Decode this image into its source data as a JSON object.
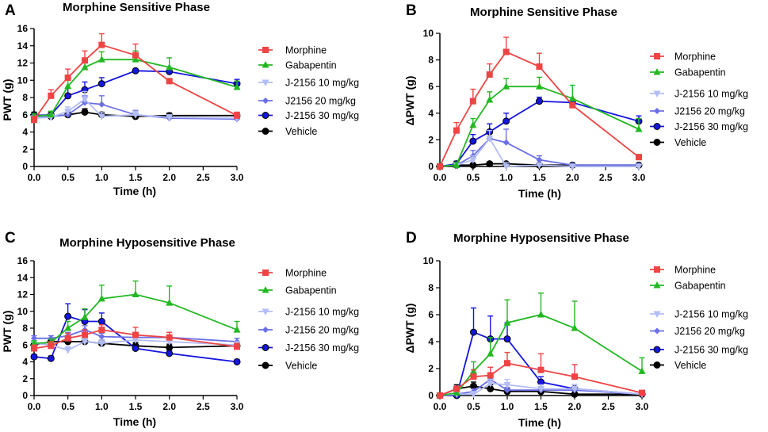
{
  "colors": {
    "Morphine": "#ef4444",
    "Gabapentin": "#22b822",
    "J-2156 10 mg/kg": "#b3bdf5",
    "J2156 20 mg/kg": "#6b6fe6",
    "J-2156 20 mg/kg": "#6b6fe6",
    "J-2156 30 mg/kg": "#1515e0",
    "Vehicle": "#000000"
  },
  "chart_data": [
    {
      "panel_letter": "A",
      "type": "line",
      "title": "Morphine Sensitive Phase",
      "xlabel": "Time (h)",
      "ylabel": "PWT (g)",
      "xlim": [
        0,
        3
      ],
      "ylim": [
        0,
        16
      ],
      "xticks": [
        "0.0",
        "0.5",
        "1.0",
        "1.5",
        "2.0",
        "2.5",
        "3.0"
      ],
      "yticks": [
        "0",
        "2",
        "4",
        "6",
        "8",
        "10",
        "12",
        "14",
        "16"
      ],
      "series": [
        {
          "name": "Morphine",
          "marker": "square",
          "x": [
            0,
            0.25,
            0.5,
            0.75,
            1.0,
            1.5,
            2.0,
            3.0
          ],
          "y": [
            5.4,
            8.2,
            10.3,
            12.3,
            14.1,
            12.9,
            9.9,
            5.9
          ],
          "err": [
            0.4,
            0.7,
            1.0,
            1.1,
            1.3,
            1.3,
            0.0,
            0.4
          ]
        },
        {
          "name": "Gabapentin",
          "marker": "triangle-up",
          "x": [
            0,
            0.25,
            0.5,
            0.75,
            1.0,
            1.5,
            2.0,
            3.0
          ],
          "y": [
            5.8,
            6.0,
            9.3,
            11.5,
            12.4,
            12.4,
            11.5,
            9.2
          ],
          "err": [
            0.3,
            0.4,
            1.0,
            1.0,
            0.9,
            1.0,
            1.1,
            0.7
          ]
        },
        {
          "name": "J-2156 10 mg/kg",
          "marker": "triangle-down",
          "x": [
            0,
            0.25,
            0.5,
            0.75,
            1.0,
            1.5,
            2.0,
            3.0
          ],
          "y": [
            5.6,
            5.7,
            6.4,
            7.8,
            5.8,
            6.0,
            5.7,
            5.6
          ],
          "err": [
            0.3,
            0.3,
            0.5,
            0.9,
            0.5,
            0.4,
            0.3,
            0.3
          ]
        },
        {
          "name": "J2156 20 mg/kg",
          "marker": "diamond",
          "x": [
            0,
            0.25,
            0.5,
            0.75,
            1.0,
            1.5,
            2.0,
            3.0
          ],
          "y": [
            5.8,
            5.8,
            6.0,
            7.4,
            7.2,
            6.0,
            5.6,
            5.5
          ],
          "err": [
            0.3,
            0.3,
            0.5,
            0.8,
            1.0,
            0.5,
            0.3,
            0.3
          ]
        },
        {
          "name": "J-2156 30 mg/kg",
          "marker": "circle",
          "x": [
            0,
            0.25,
            0.5,
            0.75,
            1.0,
            1.5,
            2.0,
            3.0
          ],
          "y": [
            5.9,
            6.0,
            8.2,
            8.9,
            9.6,
            11.1,
            11.0,
            9.6
          ],
          "err": [
            0.3,
            0.4,
            0.9,
            0.9,
            0.7,
            0.0,
            0.0,
            0.5
          ]
        },
        {
          "name": "Vehicle",
          "marker": "circle",
          "x": [
            0,
            0.25,
            0.5,
            0.75,
            1.0,
            1.5,
            2.0,
            3.0
          ],
          "y": [
            6.0,
            5.8,
            6.0,
            6.3,
            6.0,
            5.8,
            5.9,
            5.9
          ],
          "err": [
            0.3,
            0.3,
            0.3,
            0.4,
            0.3,
            0.3,
            0.3,
            0.3
          ]
        }
      ]
    },
    {
      "panel_letter": "B",
      "type": "line",
      "title": "Morphine Sensitive Phase",
      "xlabel": "Time (h)",
      "ylabel": "ΔPWT (g)",
      "xlim": [
        0,
        3
      ],
      "ylim": [
        0,
        10
      ],
      "xticks": [
        "0.0",
        "0.5",
        "1.0",
        "1.5",
        "2.0",
        "2.5",
        "3.0"
      ],
      "yticks": [
        "0",
        "2",
        "4",
        "6",
        "8",
        "10"
      ],
      "series": [
        {
          "name": "Morphine",
          "marker": "square",
          "x": [
            0,
            0.25,
            0.5,
            0.75,
            1.0,
            1.5,
            2.0,
            3.0
          ],
          "y": [
            0.0,
            2.7,
            4.9,
            6.9,
            8.6,
            7.5,
            4.6,
            0.7
          ],
          "err": [
            0.0,
            0.6,
            0.9,
            0.8,
            1.1,
            1.0,
            0.0,
            0.2
          ]
        },
        {
          "name": "Gabapentin",
          "marker": "triangle-up",
          "x": [
            0,
            0.25,
            0.5,
            0.75,
            1.0,
            1.5,
            2.0,
            3.0
          ],
          "y": [
            0.0,
            0.1,
            3.1,
            5.0,
            6.0,
            6.0,
            5.1,
            2.8
          ],
          "err": [
            0.0,
            0.2,
            0.5,
            0.6,
            0.6,
            0.7,
            1.0,
            0.8
          ]
        },
        {
          "name": "J-2156 10 mg/kg",
          "marker": "triangle-down",
          "x": [
            0,
            0.25,
            0.5,
            0.75,
            1.0,
            1.5,
            2.0,
            3.0
          ],
          "y": [
            0.0,
            0.1,
            0.5,
            2.1,
            0.0,
            0.1,
            0.0,
            0.0
          ],
          "err": [
            0.0,
            0.1,
            0.3,
            0.6,
            0.3,
            0.1,
            0.0,
            0.0
          ]
        },
        {
          "name": "J2156 20 mg/kg",
          "marker": "diamond",
          "x": [
            0,
            0.25,
            0.5,
            0.75,
            1.0,
            1.5,
            2.0,
            3.0
          ],
          "y": [
            0.0,
            0.1,
            0.8,
            2.1,
            1.8,
            0.5,
            0.1,
            0.1
          ],
          "err": [
            0.0,
            0.1,
            0.4,
            0.6,
            1.0,
            0.3,
            0.1,
            0.1
          ]
        },
        {
          "name": "J-2156 30 mg/kg",
          "marker": "circle",
          "x": [
            0,
            0.25,
            0.5,
            0.75,
            1.0,
            1.5,
            2.0,
            3.0
          ],
          "y": [
            0.0,
            0.2,
            1.9,
            2.6,
            3.4,
            4.9,
            4.8,
            3.4
          ],
          "err": [
            0.0,
            0.2,
            0.5,
            0.6,
            0.6,
            0.3,
            0.2,
            0.4
          ]
        },
        {
          "name": "Vehicle",
          "marker": "circle",
          "x": [
            0,
            0.25,
            0.5,
            0.75,
            1.0,
            1.5,
            2.0,
            3.0
          ],
          "y": [
            0.0,
            0.1,
            0.1,
            0.2,
            0.2,
            0.1,
            0.1,
            0.1
          ],
          "err": [
            0.0,
            0.1,
            0.1,
            0.1,
            0.1,
            0.1,
            0.0,
            0.0
          ]
        }
      ]
    },
    {
      "panel_letter": "C",
      "type": "line",
      "title": "Morphine Hyposensitive Phase",
      "xlabel": "Time (h)",
      "ylabel": "PWT (g)",
      "xlim": [
        0,
        3
      ],
      "ylim": [
        0,
        16
      ],
      "xticks": [
        "0.0",
        "0.5",
        "1.0",
        "1.5",
        "2.0",
        "2.5",
        "3.0"
      ],
      "yticks": [
        "0",
        "2",
        "4",
        "6",
        "8",
        "10",
        "12",
        "14",
        "16"
      ],
      "series": [
        {
          "name": "Morphine",
          "marker": "square",
          "x": [
            0,
            0.25,
            0.5,
            0.75,
            1.0,
            1.5,
            2.0,
            3.0
          ],
          "y": [
            5.6,
            5.9,
            6.8,
            7.2,
            7.8,
            7.2,
            6.9,
            5.8
          ],
          "err": [
            0.4,
            0.5,
            0.6,
            0.6,
            0.6,
            0.9,
            0.6,
            0.4
          ]
        },
        {
          "name": "Gabapentin",
          "marker": "triangle-up",
          "x": [
            0,
            0.25,
            0.5,
            0.75,
            1.0,
            1.5,
            2.0,
            3.0
          ],
          "y": [
            6.2,
            6.3,
            8.0,
            9.3,
            11.5,
            12.0,
            11.0,
            7.8
          ],
          "err": [
            0.3,
            0.4,
            0.8,
            1.0,
            1.6,
            1.6,
            2.0,
            1.0
          ]
        },
        {
          "name": "J-2156 10 mg/kg",
          "marker": "triangle-down",
          "x": [
            0,
            0.25,
            0.5,
            0.75,
            1.0,
            1.5,
            2.0,
            3.0
          ],
          "y": [
            6.2,
            6.0,
            5.4,
            6.4,
            6.2,
            6.6,
            6.4,
            6.0
          ],
          "err": [
            0.3,
            0.3,
            0.4,
            0.4,
            0.4,
            0.4,
            0.4,
            0.4
          ]
        },
        {
          "name": "J-2156 20 mg/kg",
          "marker": "diamond",
          "x": [
            0,
            0.25,
            0.5,
            0.75,
            1.0,
            1.5,
            2.0,
            3.0
          ],
          "y": [
            6.8,
            6.8,
            7.1,
            7.8,
            7.0,
            6.9,
            6.9,
            6.4
          ],
          "err": [
            0.3,
            0.3,
            0.4,
            0.5,
            0.4,
            0.5,
            0.6,
            0.4
          ]
        },
        {
          "name": "J-2156 30 mg/kg",
          "marker": "circle",
          "x": [
            0,
            0.25,
            0.5,
            0.75,
            1.0,
            1.5,
            2.0,
            3.0
          ],
          "y": [
            4.6,
            4.4,
            9.4,
            8.8,
            8.8,
            5.6,
            5.0,
            4.0
          ],
          "err": [
            0.3,
            0.3,
            1.5,
            1.4,
            1.0,
            0.3,
            0.3,
            0.3
          ]
        },
        {
          "name": "Vehicle",
          "marker": "circle",
          "x": [
            0,
            0.25,
            0.5,
            0.75,
            1.0,
            1.5,
            2.0,
            3.0
          ],
          "y": [
            6.0,
            6.4,
            6.4,
            6.4,
            6.2,
            5.9,
            5.7,
            5.9
          ],
          "err": [
            0.3,
            0.4,
            0.4,
            0.4,
            0.4,
            0.4,
            0.4,
            0.4
          ]
        }
      ]
    },
    {
      "panel_letter": "D",
      "type": "line",
      "title": "Morphine Hyposensitive Phase",
      "xlabel": "Time (h)",
      "ylabel": "ΔPWT (g)",
      "xlim": [
        0,
        3
      ],
      "ylim": [
        0,
        10
      ],
      "xticks": [
        "0.0",
        "0.5",
        "1.0",
        "1.5",
        "2.0",
        "2.5",
        "3.0"
      ],
      "yticks": [
        "0",
        "2",
        "4",
        "6",
        "8",
        "10"
      ],
      "series": [
        {
          "name": "Morphine",
          "marker": "square",
          "x": [
            0,
            0.25,
            0.5,
            0.75,
            1.0,
            1.5,
            2.0,
            3.0
          ],
          "y": [
            0.0,
            0.5,
            1.4,
            1.5,
            2.4,
            1.9,
            1.4,
            0.2
          ],
          "err": [
            0.0,
            0.2,
            0.5,
            0.6,
            0.8,
            1.2,
            0.9,
            0.1
          ]
        },
        {
          "name": "Gabapentin",
          "marker": "triangle-up",
          "x": [
            0,
            0.25,
            0.5,
            0.75,
            1.0,
            1.5,
            2.0,
            3.0
          ],
          "y": [
            0.0,
            0.2,
            1.8,
            3.1,
            5.4,
            6.0,
            5.0,
            1.8
          ],
          "err": [
            0.0,
            0.2,
            0.7,
            1.2,
            1.7,
            1.6,
            2.0,
            1.0
          ]
        },
        {
          "name": "J-2156 10 mg/kg",
          "marker": "triangle-down",
          "x": [
            0,
            0.25,
            0.5,
            0.75,
            1.0,
            1.5,
            2.0,
            3.0
          ],
          "y": [
            0.0,
            0.1,
            0.1,
            0.9,
            0.8,
            0.5,
            0.5,
            0.1
          ],
          "err": [
            0.0,
            0.1,
            0.2,
            0.3,
            0.4,
            0.3,
            0.3,
            0.1
          ]
        },
        {
          "name": "J2156 20 mg/kg",
          "marker": "diamond",
          "x": [
            0,
            0.25,
            0.5,
            0.75,
            1.0,
            1.5,
            2.0,
            3.0
          ],
          "y": [
            0.0,
            0.1,
            0.3,
            1.2,
            0.4,
            0.4,
            0.4,
            0.1
          ],
          "err": [
            0.0,
            0.1,
            0.2,
            0.4,
            0.2,
            0.2,
            0.2,
            0.1
          ]
        },
        {
          "name": "J-2156 30 mg/kg",
          "marker": "circle",
          "x": [
            0,
            0.25,
            0.5,
            0.75,
            1.0,
            1.5,
            2.0,
            3.0
          ],
          "y": [
            0.0,
            0.0,
            4.7,
            4.2,
            4.2,
            1.0,
            0.5,
            0.1
          ],
          "err": [
            0.0,
            0.1,
            1.8,
            1.7,
            1.2,
            0.4,
            0.3,
            0.1
          ]
        },
        {
          "name": "Vehicle",
          "marker": "circle",
          "x": [
            0,
            0.25,
            0.5,
            0.75,
            1.0,
            1.5,
            2.0,
            3.0
          ],
          "y": [
            0.0,
            0.5,
            0.7,
            0.5,
            0.3,
            0.3,
            0.1,
            0.1
          ],
          "err": [
            0.0,
            0.3,
            0.3,
            0.3,
            0.2,
            0.2,
            0.1,
            0.1
          ]
        }
      ]
    }
  ]
}
